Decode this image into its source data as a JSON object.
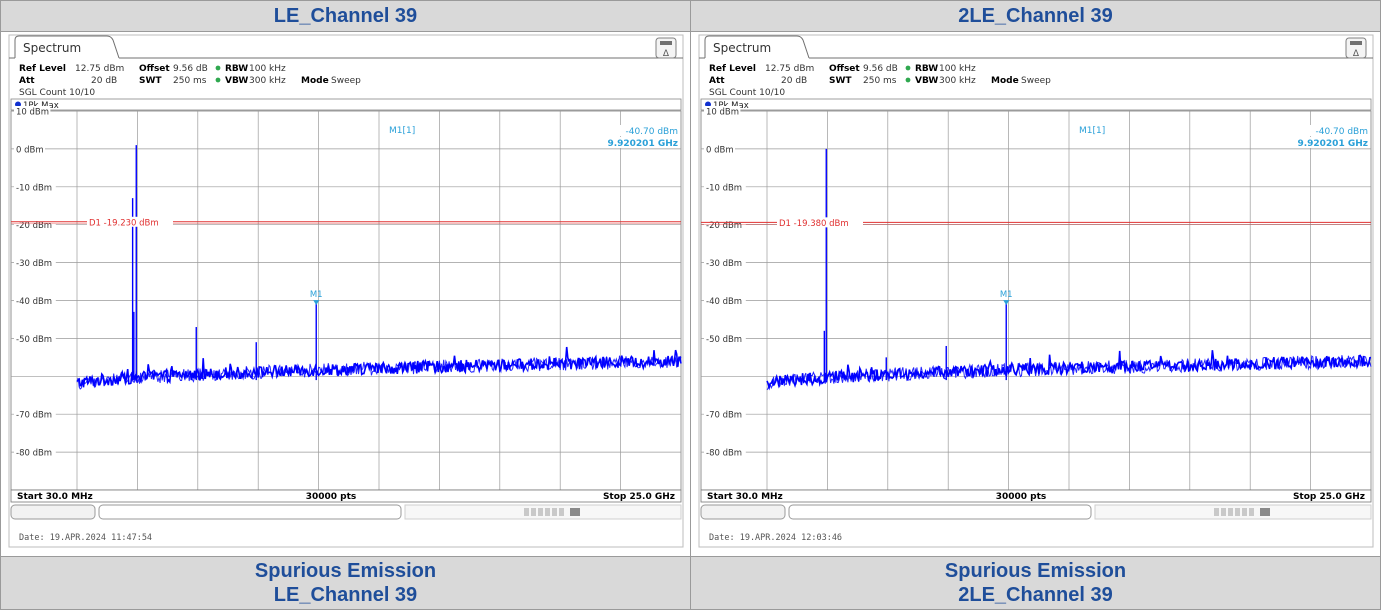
{
  "panels": [
    {
      "header": "LE_Channel 39",
      "footer_line1": "Spurious Emission",
      "footer_line2": "LE_Channel 39",
      "tab": "Spectrum",
      "settings": {
        "ref_level_label": "Ref Level",
        "ref_level": "12.75 dBm",
        "offset_label": "Offset",
        "offset": "9.56 dB",
        "rbw_label": "RBW",
        "rbw": "100 kHz",
        "att_label": "Att",
        "att": "20 dB",
        "swt_label": "SWT",
        "swt": "250 ms",
        "vbw_label": "VBW",
        "vbw": "300 kHz",
        "mode_label": "Mode",
        "mode": "Sweep",
        "sgl_count": "SGL Count 10/10"
      },
      "trace_label": "1Pk Max",
      "marker_name": "M1[1]",
      "marker_level": "-40.70 dBm",
      "marker_freq": "9.920201 GHz",
      "marker_tag": "M1",
      "limit_label": "D1  -19.230 dBm",
      "start": "Start 30.0 MHz",
      "points": "30000 pts",
      "stop": "Stop 25.0 GHz",
      "date": "Date: 19.APR.2024  11:47:54"
    },
    {
      "header": "2LE_Channel 39",
      "footer_line1": "Spurious Emission",
      "footer_line2": "2LE_Channel 39",
      "tab": "Spectrum",
      "settings": {
        "ref_level_label": "Ref Level",
        "ref_level": "12.75 dBm",
        "offset_label": "Offset",
        "offset": "9.56 dB",
        "rbw_label": "RBW",
        "rbw": "100 kHz",
        "att_label": "Att",
        "att": "20 dB",
        "swt_label": "SWT",
        "swt": "250 ms",
        "vbw_label": "VBW",
        "vbw": "300 kHz",
        "mode_label": "Mode",
        "mode": "Sweep",
        "sgl_count": "SGL Count 10/10"
      },
      "trace_label": "1Pk Max",
      "marker_name": "M1[1]",
      "marker_level": "-40.70 dBm",
      "marker_freq": "9.920201 GHz",
      "marker_tag": "M1",
      "limit_label": "D1  -19.380 dBm",
      "start": "Start 30.0 MHz",
      "points": "30000 pts",
      "stop": "Stop 25.0 GHz",
      "date": "Date: 19.APR.2024  12:03:46"
    }
  ],
  "chart_data": [
    {
      "type": "line",
      "y_tick_labels": [
        "10 dBm",
        "0 dBm",
        "-10 dBm",
        "-20 dBm",
        "-30 dBm",
        "-40 dBm",
        "-50 dBm",
        "",
        "-70 dBm",
        "-80 dBm"
      ],
      "ylim": [
        -90,
        10
      ],
      "xlim_ghz": [
        0.03,
        25.0
      ],
      "grid": true,
      "limit_line_dbm": -19.23,
      "marker": {
        "freq_ghz": 9.920201,
        "level_dbm": -40.7
      },
      "noise_floor_start_dbm": -62,
      "noise_floor_end_dbm": -56,
      "spikes": [
        {
          "freq_ghz": 2.48,
          "level_dbm": 1
        },
        {
          "freq_ghz": 2.33,
          "level_dbm": -13
        },
        {
          "freq_ghz": 2.38,
          "level_dbm": -43
        },
        {
          "freq_ghz": 4.96,
          "level_dbm": -47
        },
        {
          "freq_ghz": 9.920201,
          "level_dbm": -40.7
        },
        {
          "freq_ghz": 7.44,
          "level_dbm": -51
        }
      ],
      "trace_color": "#0000ff",
      "limit_color": "#e03030"
    },
    {
      "type": "line",
      "y_tick_labels": [
        "10 dBm",
        "0 dBm",
        "-10 dBm",
        "-20 dBm",
        "-30 dBm",
        "-40 dBm",
        "-50 dBm",
        "",
        "-70 dBm",
        "-80 dBm"
      ],
      "ylim": [
        -90,
        10
      ],
      "xlim_ghz": [
        0.03,
        25.0
      ],
      "grid": true,
      "limit_line_dbm": -19.38,
      "marker": {
        "freq_ghz": 9.920201,
        "level_dbm": -40.7
      },
      "noise_floor_start_dbm": -62,
      "noise_floor_end_dbm": -56,
      "spikes": [
        {
          "freq_ghz": 2.48,
          "level_dbm": 0
        },
        {
          "freq_ghz": 2.4,
          "level_dbm": -48
        },
        {
          "freq_ghz": 4.96,
          "level_dbm": -55
        },
        {
          "freq_ghz": 9.920201,
          "level_dbm": -40.7
        },
        {
          "freq_ghz": 7.44,
          "level_dbm": -52
        }
      ],
      "trace_color": "#0000ff",
      "limit_color": "#e03030"
    }
  ]
}
